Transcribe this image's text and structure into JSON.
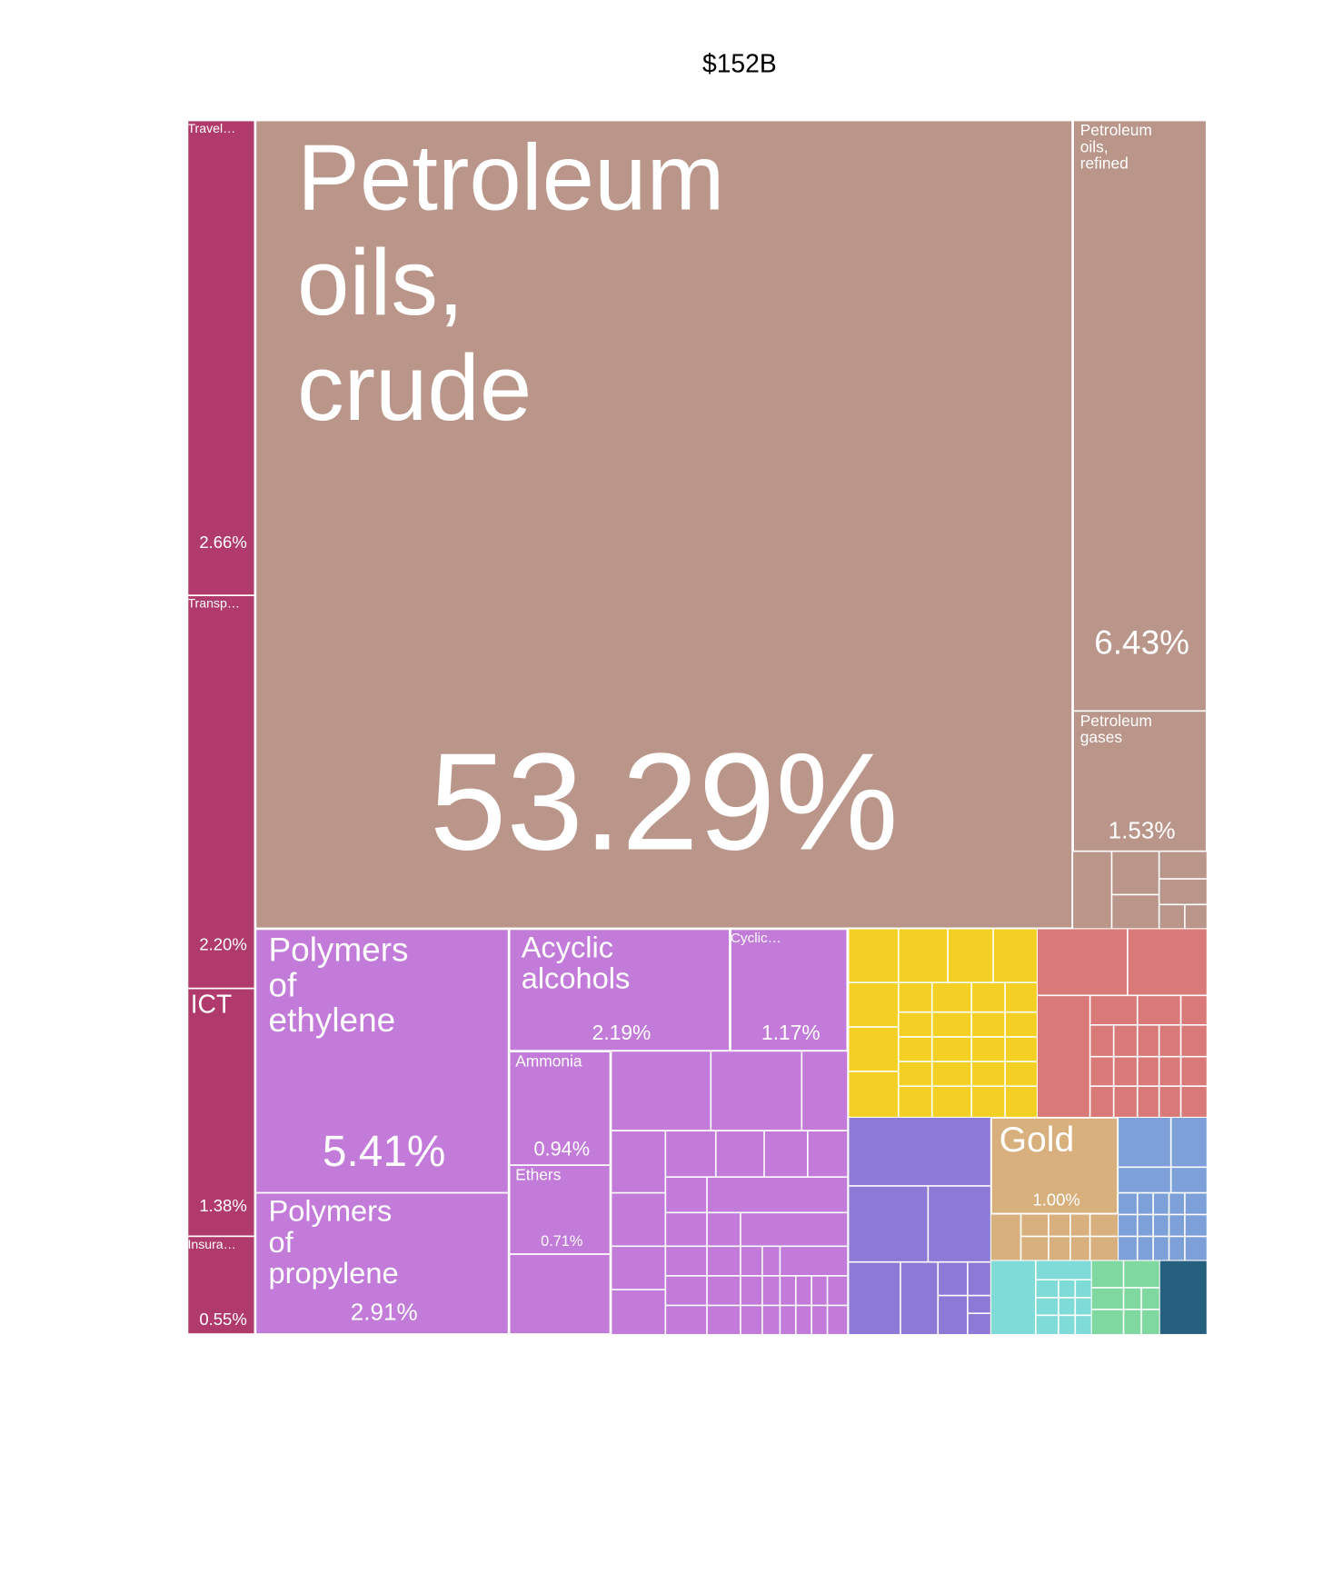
{
  "chart_data": {
    "type": "treemap",
    "title": "$152B",
    "categories": [
      "Travel…",
      "Transp…",
      "ICT",
      "Insura…",
      "Petroleum oils, crude",
      "Petroleum oils, refined",
      "Petroleum gases",
      "Polymers of ethylene",
      "Polymers of propylene",
      "Acyclic alcohols",
      "Cyclic…",
      "Ammonia",
      "Ethers",
      "Gold"
    ],
    "values": [
      2.66,
      2.2,
      1.38,
      0.55,
      53.29,
      6.43,
      1.53,
      5.41,
      2.91,
      2.19,
      1.17,
      0.94,
      0.71,
      1.0
    ],
    "value_labels": [
      "2.66%",
      "2.20%",
      "1.38%",
      "0.55%",
      "53.29%",
      "6.43%",
      "1.53%",
      "5.41%",
      "2.91%",
      "2.19%",
      "1.17%",
      "0.94%",
      "0.71%",
      "1.00%"
    ],
    "colors": [
      "#b03a6b",
      "#b03a6b",
      "#b03a6b",
      "#b03a6b",
      "#ba968a",
      "#ba968a",
      "#ba968a",
      "#c27bd9",
      "#c27bd9",
      "#c27bd9",
      "#c27bd9",
      "#c27bd9",
      "#c27bd9",
      "#d8b07d"
    ]
  }
}
